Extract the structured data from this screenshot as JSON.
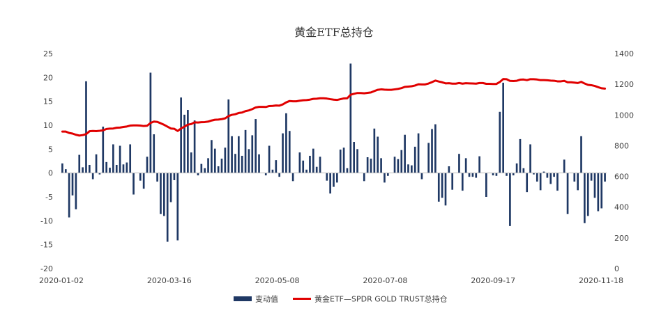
{
  "chart_data": {
    "type": "bar+line",
    "title": "黄金ETF总持仓",
    "x_tick_labels": [
      "2020-01-02",
      "2020-03-16",
      "2020-05-08",
      "2020-07-08",
      "2020-09-17",
      "2020-11-18"
    ],
    "left_axis": {
      "ylim": [
        -20,
        25
      ],
      "ticks": [
        "-20",
        "-15",
        "-10",
        "-5",
        "0",
        "5",
        "10",
        "15",
        "20",
        "25"
      ]
    },
    "right_axis": {
      "ylim": [
        0,
        1400
      ],
      "ticks": [
        "0",
        "200",
        "400",
        "600",
        "800",
        "1000",
        "1200",
        "1400"
      ]
    },
    "grid": false,
    "legend_position": "bottom",
    "series": [
      {
        "name": "变动值",
        "type": "bar",
        "axis": "left",
        "color": "#1f3864",
        "values": [
          2.0,
          0.8,
          -9.3,
          -4.7,
          -7.6,
          3.8,
          1.2,
          19.2,
          1.7,
          -1.3,
          3.9,
          -0.3,
          9.7,
          2.3,
          1.1,
          6.0,
          1.7,
          5.7,
          1.8,
          2.2,
          6.0,
          -4.5,
          0,
          -1.6,
          -3.3,
          3.4,
          21.0,
          8.1,
          -1.8,
          -8.6,
          -9.0,
          -14.4,
          -6.1,
          -1.5,
          -14.1,
          15.8,
          12.2,
          13.2,
          4.3,
          11.0,
          -0.5,
          1.9,
          1.0,
          3.1,
          6.9,
          5.1,
          1.4,
          3.0,
          5.3,
          15.4,
          7.7,
          4.0,
          7.7,
          3.6,
          9.0,
          5.0,
          7.9,
          11.3,
          3.9,
          0,
          -0.5,
          5.7,
          0.7,
          2.7,
          -0.8,
          8.3,
          12.5,
          8.8,
          -1.7,
          0,
          4.3,
          2.6,
          0.7,
          3.6,
          5.1,
          1.3,
          3.4,
          0,
          -1.6,
          -4.3,
          -2.9,
          -2.0,
          4.9,
          5.3,
          1.0,
          22.9,
          6.5,
          5.0,
          0,
          -1.7,
          3.3,
          3.0,
          9.3,
          7.6,
          3.1,
          -2.0,
          -0.6,
          0,
          3.4,
          2.9,
          4.8,
          8.0,
          1.8,
          1.6,
          5.5,
          8.3,
          -1.3,
          0,
          6.3,
          9.2,
          10.2,
          -6.0,
          -5.2,
          -6.8,
          1.4,
          -3.5,
          0,
          4.0,
          -3.7,
          3.1,
          -0.8,
          -0.8,
          -1.0,
          3.5,
          0,
          -5.0,
          0,
          -0.5,
          -0.6,
          12.8,
          18.9,
          -0.6,
          -11.1,
          -0.5,
          2.0,
          7.1,
          1.0,
          -4.0,
          6.0,
          -0.3,
          -1.8,
          -3.6,
          0.3,
          -1.0,
          -2.3,
          -0.8,
          -3.7,
          0,
          2.8,
          -8.6,
          0,
          -1.8,
          -3.6,
          7.7,
          -10.5,
          -9.0,
          -1.6,
          -5.2,
          -8.0,
          -7.4,
          -1.8
        ]
      },
      {
        "name": "黄金ETF—SPDR GOLD TRUST总持仓",
        "type": "line",
        "axis": "right",
        "color": "#e00000",
        "values": [
          892,
          892,
          883,
          879,
          871,
          866,
          869,
          875,
          894,
          896,
          895,
          897,
          900,
          909,
          911,
          912,
          917,
          918,
          922,
          925,
          931,
          932,
          932,
          931,
          928,
          930,
          948,
          957,
          955,
          946,
          936,
          924,
          912,
          910,
          896,
          912,
          924,
          937,
          941,
          952,
          951,
          953,
          954,
          957,
          964,
          969,
          970,
          973,
          978,
          993,
          1001,
          1005,
          1013,
          1016,
          1025,
          1030,
          1038,
          1049,
          1053,
          1053,
          1052,
          1058,
          1059,
          1062,
          1061,
          1069,
          1082,
          1091,
          1089,
          1089,
          1093,
          1096,
          1097,
          1100,
          1105,
          1106,
          1109,
          1109,
          1107,
          1103,
          1100,
          1098,
          1103,
          1108,
          1109,
          1132,
          1138,
          1143,
          1143,
          1141,
          1144,
          1147,
          1156,
          1164,
          1167,
          1165,
          1164,
          1164,
          1167,
          1170,
          1175,
          1183,
          1185,
          1187,
          1192,
          1200,
          1199,
          1199,
          1205,
          1214,
          1224,
          1218,
          1213,
          1206,
          1207,
          1204,
          1204,
          1208,
          1204,
          1207,
          1206,
          1205,
          1204,
          1208,
          1208,
          1203,
          1203,
          1202,
          1202,
          1215,
          1234,
          1233,
          1222,
          1221,
          1223,
          1230,
          1231,
          1227,
          1233,
          1233,
          1231,
          1227,
          1227,
          1226,
          1224,
          1223,
          1219,
          1219,
          1222,
          1213,
          1213,
          1211,
          1208,
          1216,
          1205,
          1196,
          1194,
          1189,
          1181,
          1174,
          1172
        ]
      }
    ]
  }
}
